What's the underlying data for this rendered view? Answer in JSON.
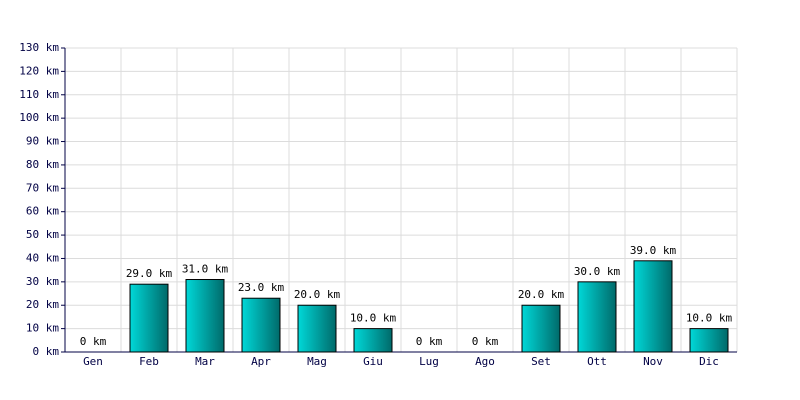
{
  "chart_data": {
    "type": "bar",
    "categories": [
      "Gen",
      "Feb",
      "Mar",
      "Apr",
      "Mag",
      "Giu",
      "Lug",
      "Ago",
      "Set",
      "Ott",
      "Nov",
      "Dic"
    ],
    "values": [
      0,
      29,
      31,
      23,
      20,
      10,
      0,
      0,
      20,
      30,
      39,
      10
    ],
    "value_labels": [
      "0 km",
      "29.0 km",
      "31.0 km",
      "23.0 km",
      "20.0 km",
      "10.0 km",
      "0 km",
      "0 km",
      "20.0 km",
      "30.0 km",
      "39.0 km",
      "10.0 km"
    ],
    "color": "#00d8d8",
    "ylim": [
      0,
      130
    ],
    "yticks": [
      {
        "value": 0,
        "label": "0 km"
      },
      {
        "value": 10,
        "label": "10 km"
      },
      {
        "value": 20,
        "label": "20 km"
      },
      {
        "value": 30,
        "label": "30 km"
      },
      {
        "value": 40,
        "label": "40 km"
      },
      {
        "value": 50,
        "label": "50 km"
      },
      {
        "value": 60,
        "label": "60 km"
      },
      {
        "value": 70,
        "label": "70 km"
      },
      {
        "value": 80,
        "label": "80 km"
      },
      {
        "value": 90,
        "label": "90 km"
      },
      {
        "value": 100,
        "label": "100 km"
      },
      {
        "value": 110,
        "label": "110 km"
      },
      {
        "value": 120,
        "label": "120 km"
      },
      {
        "value": 130,
        "label": "130 km"
      }
    ],
    "grid": true
  }
}
